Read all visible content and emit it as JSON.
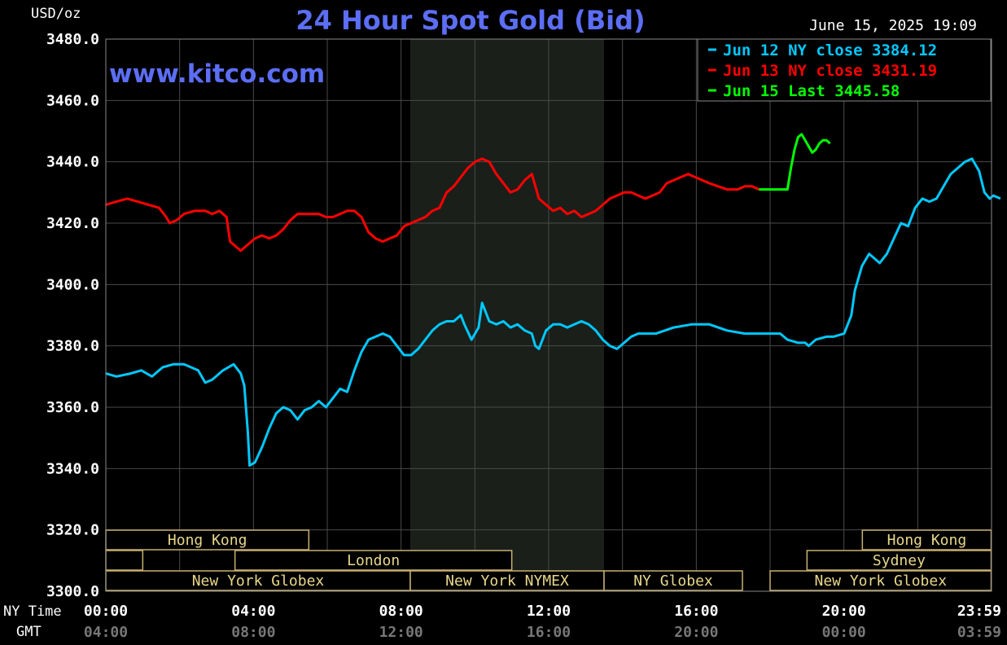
{
  "header": {
    "unit_label": "USD/oz",
    "title": "24 Hour Spot Gold (Bid)",
    "timestamp": "June 15, 2025 19:09",
    "watermark": "www.kitco.com"
  },
  "legend": {
    "items": [
      {
        "label": "Jun 12 NY close 3384.12",
        "color": "#00c8ff"
      },
      {
        "label": "Jun 13 NY close 3431.19",
        "color": "#ff0000"
      },
      {
        "label": "Jun 15 Last 3445.58",
        "color": "#00ff00"
      }
    ]
  },
  "axis": {
    "y_ticks": [
      "3480.0",
      "3460.0",
      "3440.0",
      "3420.0",
      "3400.0",
      "3380.0",
      "3360.0",
      "3340.0",
      "3320.0",
      "3300.0"
    ],
    "x_row_label_ny": "NY Time",
    "x_row_label_gmt": "GMT",
    "x_ticks_ny": [
      "00:00",
      "04:00",
      "08:00",
      "12:00",
      "16:00",
      "20:00",
      "23:59"
    ],
    "x_ticks_gmt": [
      "04:00",
      "08:00",
      "12:00",
      "16:00",
      "20:00",
      "00:00",
      "03:59"
    ]
  },
  "sessions": [
    {
      "label": "Hong Kong",
      "start": 0.0,
      "end": 5.5,
      "row": 0
    },
    {
      "label": "Hong Kong",
      "start": 20.5,
      "end": 23.99,
      "row": 0
    },
    {
      "label": "",
      "start": 0.0,
      "end": 1.0,
      "row": 1
    },
    {
      "label": "London",
      "start": 3.5,
      "end": 11.0,
      "row": 1
    },
    {
      "label": "Sydney",
      "start": 19.0,
      "end": 23.99,
      "row": 1
    },
    {
      "label": "New York Globex",
      "start": 0.0,
      "end": 8.25,
      "row": 2
    },
    {
      "label": "New York NYMEX",
      "start": 8.25,
      "end": 13.5,
      "row": 2
    },
    {
      "label": "NY Globex",
      "start": 13.5,
      "end": 17.25,
      "row": 2
    },
    {
      "label": "New York Globex",
      "start": 18.0,
      "end": 23.99,
      "row": 2
    }
  ],
  "chart_data": {
    "type": "line",
    "x_unit": "NY time (hours)",
    "xlim": [
      0,
      24
    ],
    "ylim": [
      3300,
      3480
    ],
    "y_label": "USD/oz",
    "grid": true,
    "highlight_hours": [
      8.25,
      13.5
    ],
    "series": [
      {
        "name": "Jun 12 NY close 3384.12",
        "color": "#00c8ff",
        "points": [
          [
            0,
            3371
          ],
          [
            0.3,
            3370
          ],
          [
            0.7,
            3371
          ],
          [
            1.0,
            3372
          ],
          [
            1.3,
            3370
          ],
          [
            1.6,
            3373
          ],
          [
            1.9,
            3374
          ],
          [
            2.2,
            3374
          ],
          [
            2.4,
            3373
          ],
          [
            2.6,
            3372
          ],
          [
            2.8,
            3368
          ],
          [
            3.0,
            3369
          ],
          [
            3.3,
            3372
          ],
          [
            3.6,
            3374
          ],
          [
            3.8,
            3371
          ],
          [
            3.9,
            3367
          ],
          [
            4.0,
            3352
          ],
          [
            4.05,
            3341
          ],
          [
            4.2,
            3342
          ],
          [
            4.4,
            3347
          ],
          [
            4.6,
            3353
          ],
          [
            4.8,
            3358
          ],
          [
            5.0,
            3360
          ],
          [
            5.2,
            3359
          ],
          [
            5.4,
            3356
          ],
          [
            5.6,
            3359
          ],
          [
            5.8,
            3360
          ],
          [
            6.0,
            3362
          ],
          [
            6.2,
            3360
          ],
          [
            6.4,
            3363
          ],
          [
            6.6,
            3366
          ],
          [
            6.8,
            3365
          ],
          [
            7.0,
            3372
          ],
          [
            7.2,
            3378
          ],
          [
            7.4,
            3382
          ],
          [
            7.6,
            3383
          ],
          [
            7.8,
            3384
          ],
          [
            8.0,
            3383
          ],
          [
            8.2,
            3380
          ],
          [
            8.4,
            3377
          ],
          [
            8.6,
            3377
          ],
          [
            8.8,
            3379
          ],
          [
            9.0,
            3382
          ],
          [
            9.2,
            3385
          ],
          [
            9.4,
            3387
          ],
          [
            9.6,
            3388
          ],
          [
            9.8,
            3388
          ],
          [
            10.0,
            3390
          ],
          [
            10.1,
            3387
          ],
          [
            10.3,
            3382
          ],
          [
            10.5,
            3386
          ],
          [
            10.6,
            3394
          ],
          [
            10.8,
            3388
          ],
          [
            11.0,
            3387
          ],
          [
            11.2,
            3388
          ],
          [
            11.4,
            3386
          ],
          [
            11.6,
            3387
          ],
          [
            11.8,
            3385
          ],
          [
            12.0,
            3384
          ],
          [
            12.1,
            3380
          ],
          [
            12.2,
            3379
          ],
          [
            12.4,
            3385
          ],
          [
            12.6,
            3387
          ],
          [
            12.8,
            3387
          ],
          [
            13.0,
            3386
          ],
          [
            13.2,
            3387
          ],
          [
            13.4,
            3388
          ],
          [
            13.6,
            3387
          ],
          [
            13.8,
            3385
          ],
          [
            14.0,
            3382
          ],
          [
            14.2,
            3380
          ],
          [
            14.4,
            3379
          ],
          [
            14.6,
            3381
          ],
          [
            14.8,
            3383
          ],
          [
            15.0,
            3384
          ],
          [
            15.5,
            3384
          ],
          [
            16.0,
            3386
          ],
          [
            16.5,
            3387
          ],
          [
            17.0,
            3387
          ],
          [
            17.25,
            3386
          ],
          [
            17.5,
            3385
          ],
          [
            18.0,
            3384
          ],
          [
            18.5,
            3384
          ],
          [
            19.0,
            3384
          ],
          [
            19.2,
            3382
          ],
          [
            19.5,
            3381
          ],
          [
            19.7,
            3381
          ],
          [
            19.8,
            3380
          ],
          [
            20.0,
            3382
          ],
          [
            20.3,
            3383
          ],
          [
            20.5,
            3383
          ],
          [
            20.8,
            3384
          ],
          [
            21.0,
            3390
          ],
          [
            21.1,
            3398
          ],
          [
            21.3,
            3406
          ],
          [
            21.5,
            3410
          ],
          [
            21.6,
            3409
          ],
          [
            21.8,
            3407
          ],
          [
            22.0,
            3410
          ],
          [
            22.2,
            3415
          ],
          [
            22.4,
            3420
          ],
          [
            22.6,
            3419
          ],
          [
            22.8,
            3425
          ],
          [
            23.0,
            3428
          ],
          [
            23.2,
            3427
          ],
          [
            23.4,
            3428
          ],
          [
            23.6,
            3432
          ],
          [
            23.8,
            3436
          ],
          [
            24.0,
            3438
          ],
          [
            24.2,
            3440
          ],
          [
            24.4,
            3441
          ],
          [
            24.6,
            3437
          ],
          [
            24.75,
            3430
          ],
          [
            24.9,
            3428
          ],
          [
            25.0,
            3429
          ],
          [
            25.2,
            3428
          ]
        ]
      },
      {
        "name": "Jun 13 NY close 3431.19",
        "color": "#ff0000",
        "points": [
          [
            0,
            3426
          ],
          [
            0.3,
            3427
          ],
          [
            0.6,
            3428
          ],
          [
            0.9,
            3427
          ],
          [
            1.2,
            3426
          ],
          [
            1.5,
            3425
          ],
          [
            1.7,
            3422
          ],
          [
            1.8,
            3420
          ],
          [
            2.0,
            3421
          ],
          [
            2.2,
            3423
          ],
          [
            2.5,
            3424
          ],
          [
            2.8,
            3424
          ],
          [
            3.0,
            3423
          ],
          [
            3.2,
            3424
          ],
          [
            3.4,
            3422
          ],
          [
            3.5,
            3414
          ],
          [
            3.6,
            3413
          ],
          [
            3.8,
            3411
          ],
          [
            4.0,
            3413
          ],
          [
            4.2,
            3415
          ],
          [
            4.4,
            3416
          ],
          [
            4.6,
            3415
          ],
          [
            4.8,
            3416
          ],
          [
            5.0,
            3418
          ],
          [
            5.2,
            3421
          ],
          [
            5.4,
            3423
          ],
          [
            5.6,
            3423
          ],
          [
            5.8,
            3423
          ],
          [
            6.0,
            3423
          ],
          [
            6.2,
            3422
          ],
          [
            6.4,
            3422
          ],
          [
            6.6,
            3423
          ],
          [
            6.8,
            3424
          ],
          [
            7.0,
            3424
          ],
          [
            7.2,
            3422
          ],
          [
            7.4,
            3417
          ],
          [
            7.6,
            3415
          ],
          [
            7.8,
            3414
          ],
          [
            8.0,
            3415
          ],
          [
            8.2,
            3416
          ],
          [
            8.4,
            3419
          ],
          [
            8.6,
            3420
          ],
          [
            8.8,
            3421
          ],
          [
            9.0,
            3422
          ],
          [
            9.2,
            3424
          ],
          [
            9.4,
            3425
          ],
          [
            9.6,
            3430
          ],
          [
            9.8,
            3432
          ],
          [
            10.0,
            3435
          ],
          [
            10.2,
            3438
          ],
          [
            10.4,
            3440
          ],
          [
            10.6,
            3441
          ],
          [
            10.8,
            3440
          ],
          [
            11.0,
            3436
          ],
          [
            11.2,
            3433
          ],
          [
            11.4,
            3430
          ],
          [
            11.6,
            3431
          ],
          [
            11.8,
            3434
          ],
          [
            12.0,
            3436
          ],
          [
            12.2,
            3428
          ],
          [
            12.4,
            3426
          ],
          [
            12.6,
            3424
          ],
          [
            12.8,
            3425
          ],
          [
            13.0,
            3423
          ],
          [
            13.2,
            3424
          ],
          [
            13.4,
            3422
          ],
          [
            13.6,
            3423
          ],
          [
            13.8,
            3424
          ],
          [
            14.0,
            3426
          ],
          [
            14.2,
            3428
          ],
          [
            14.4,
            3429
          ],
          [
            14.6,
            3430
          ],
          [
            14.8,
            3430
          ],
          [
            15.0,
            3429
          ],
          [
            15.2,
            3428
          ],
          [
            15.4,
            3429
          ],
          [
            15.6,
            3430
          ],
          [
            15.8,
            3433
          ],
          [
            16.0,
            3434
          ],
          [
            16.2,
            3435
          ],
          [
            16.4,
            3436
          ],
          [
            16.6,
            3435
          ],
          [
            16.8,
            3434
          ],
          [
            17.0,
            3433
          ],
          [
            17.25,
            3432
          ],
          [
            17.5,
            3431
          ],
          [
            17.8,
            3431
          ],
          [
            18.0,
            3432
          ],
          [
            18.2,
            3432
          ],
          [
            18.4,
            3431
          ]
        ]
      },
      {
        "name": "Jun 15 Last 3445.58",
        "color": "#00ff00",
        "points": [
          [
            18.4,
            3431
          ],
          [
            19.2,
            3431
          ],
          [
            19.3,
            3438
          ],
          [
            19.4,
            3444
          ],
          [
            19.5,
            3448
          ],
          [
            19.6,
            3449
          ],
          [
            19.7,
            3447
          ],
          [
            19.8,
            3445
          ],
          [
            19.9,
            3443
          ],
          [
            20.0,
            3444
          ],
          [
            20.1,
            3446
          ],
          [
            20.2,
            3447
          ],
          [
            20.3,
            3447
          ],
          [
            20.4,
            3446
          ]
        ]
      }
    ]
  }
}
